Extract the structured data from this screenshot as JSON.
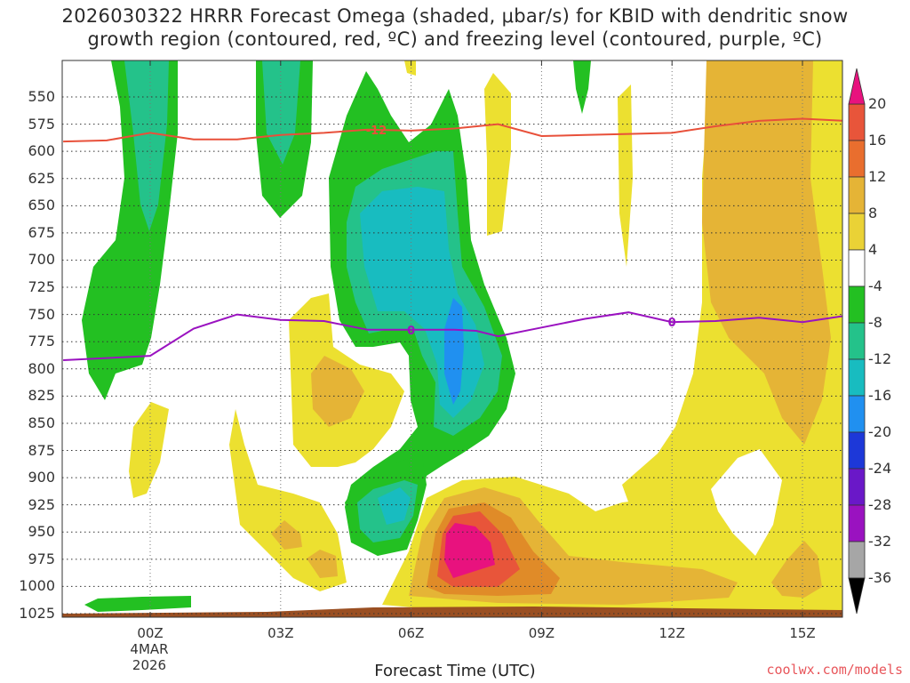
{
  "title_line1": "2026030322 HRRR Forecast Omega (shaded, μbar/s) for KBID with dendritic snow",
  "title_line2": "growth region (contoured, red, ºC) and freezing level (contoured, purple, ºC)",
  "x_axis_title": "Forecast Time (UTC)",
  "source": "coolwx.com/models",
  "x_ticks": [
    "00Z",
    "03Z",
    "06Z",
    "09Z",
    "12Z",
    "15Z"
  ],
  "date_label_line1": "4MAR",
  "date_label_line2": "2026",
  "y_ticks": [
    "550",
    "575",
    "600",
    "625",
    "650",
    "675",
    "700",
    "725",
    "750",
    "775",
    "800",
    "825",
    "850",
    "875",
    "900",
    "925",
    "950",
    "975",
    "1000",
    "1025"
  ],
  "colorbar_labels": [
    "20",
    "16",
    "12",
    "8",
    "4",
    "-4",
    "-8",
    "-12",
    "-16",
    "-20",
    "-24",
    "-28",
    "-32",
    "-36"
  ],
  "colors": {
    "lt4": "#ece030",
    "lt8": "#e5b436",
    "lt12": "#e08b28",
    "lt16": "#e8553a",
    "gt20": "#e8127e",
    "ground": "#9a4f22",
    "neg4": "#23c022",
    "neg8": "#24c28a",
    "neg12": "#18bcc0",
    "neg16": "#2090f0",
    "dgz": "#e8503a",
    "freezing": "#9a12c0"
  },
  "chart_data": {
    "type": "heatmap",
    "title": "2026030322 HRRR Forecast Omega (shaded, μbar/s) for KBID with dendritic snow growth region (contoured, red, ºC) and freezing level (contoured, purple, ºC)",
    "xlabel": "Forecast Time (UTC)",
    "ylabel": "",
    "x_categories": [
      "00Z",
      "03Z",
      "06Z",
      "09Z",
      "12Z",
      "15Z"
    ],
    "y_levels_mb": [
      550,
      575,
      600,
      625,
      650,
      675,
      700,
      725,
      750,
      775,
      800,
      825,
      850,
      875,
      900,
      925,
      950,
      975,
      1000,
      1025
    ],
    "colorbar_levels": [
      20,
      16,
      12,
      8,
      4,
      -4,
      -8,
      -12,
      -16,
      -20,
      -24,
      -28,
      -32,
      -36
    ],
    "contours": [
      {
        "name": "-12",
        "color": "red",
        "x_hours": [
          -2.0,
          -1.0,
          0.0,
          1.0,
          2.0,
          3.0,
          4.0,
          5.0,
          6.0,
          7.0,
          8.0,
          9.0,
          10.0,
          11.0,
          12.0,
          13.0,
          14.0,
          15.0,
          16.0
        ],
        "pressure": [
          591,
          590,
          583,
          589,
          589,
          585,
          583,
          580,
          581,
          579,
          575,
          586,
          585,
          584,
          583,
          577,
          572,
          570,
          572
        ]
      },
      {
        "name": "0",
        "color": "purple",
        "x_hours": [
          -2.0,
          -1.0,
          0.0,
          1.0,
          2.0,
          3.0,
          4.0,
          5.0,
          6.0,
          7.0,
          7.5,
          8.0,
          9.0,
          10.0,
          11.0,
          12.0,
          13.0,
          14.0,
          15.0,
          16.0
        ],
        "pressure": [
          792,
          790,
          788,
          763,
          750,
          755,
          756,
          764,
          764,
          764,
          765,
          770,
          762,
          754,
          748,
          757,
          756,
          753,
          757,
          751
        ]
      }
    ],
    "max_omega_region": {
      "x_hours": 7.0,
      "pressure": 945,
      "value_gt": 20
    },
    "grid": true
  }
}
